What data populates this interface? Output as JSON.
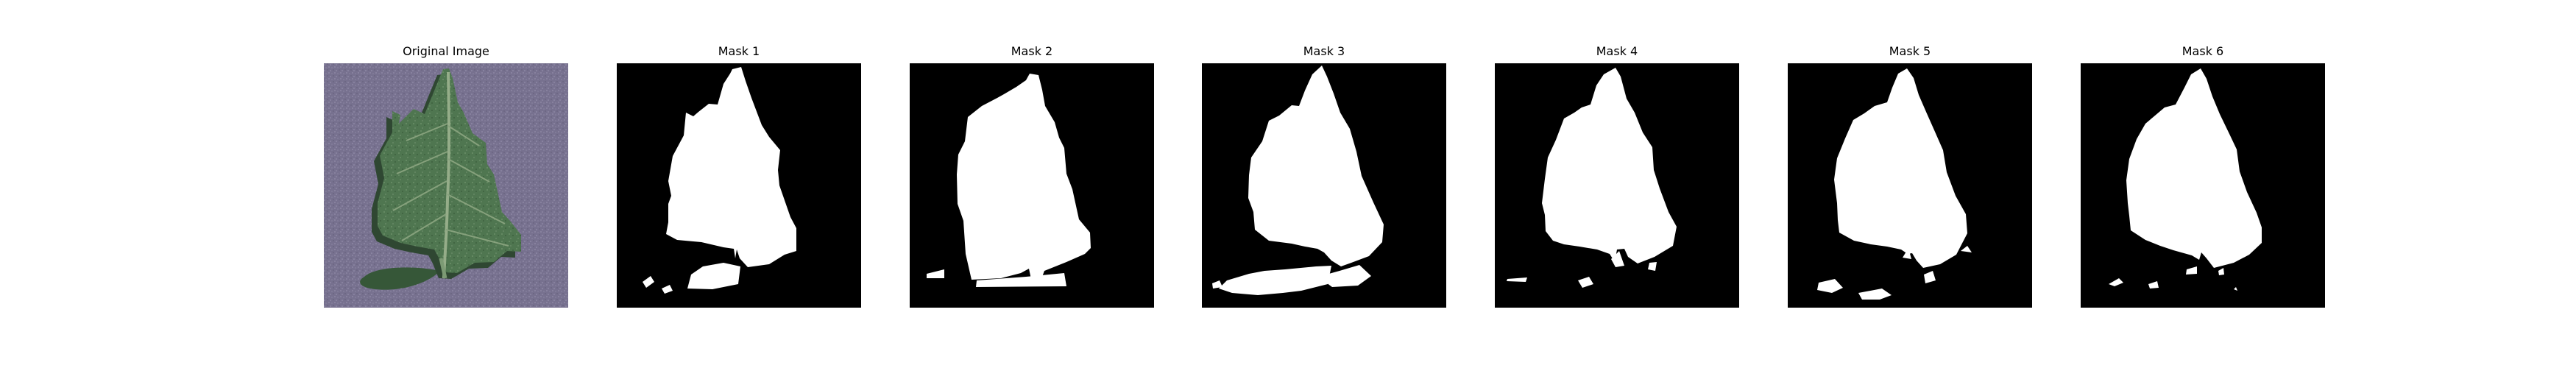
{
  "panels": [
    {
      "title": "Original Image"
    },
    {
      "title": "Mask 1"
    },
    {
      "title": "Mask 2"
    },
    {
      "title": "Mask 3"
    },
    {
      "title": "Mask 4"
    },
    {
      "title": "Mask 5"
    },
    {
      "title": "Mask 6"
    }
  ],
  "colors": {
    "background": "#ffffff",
    "mask_background": "#000000",
    "mask_foreground": "#ffffff",
    "leaf": "#4f7650",
    "leaf_dark": "#355638",
    "surface": "#77718f"
  }
}
